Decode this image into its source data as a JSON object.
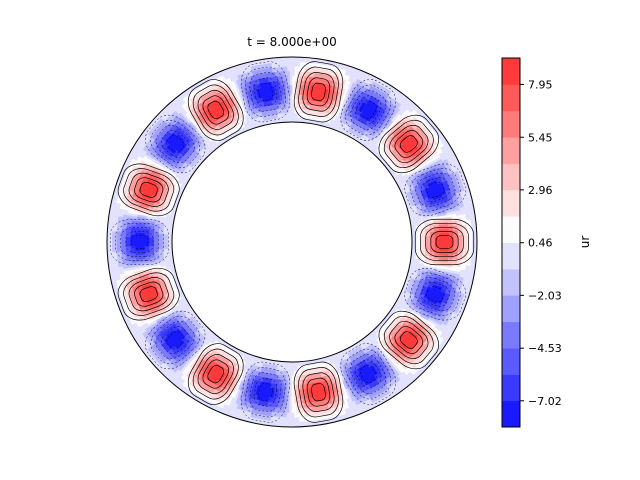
{
  "chart_data": {
    "type": "heatmap",
    "title": "t = 8.000e+00",
    "colorbar_label": "ur",
    "colorbar_ticks": [
      7.95,
      5.45,
      2.96,
      0.46,
      -2.03,
      -4.53,
      -7.02
    ],
    "colorbar_tick_labels": [
      "7.95",
      "5.45",
      "2.96",
      "0.46",
      "−2.03",
      "−4.53",
      "−7.02"
    ],
    "value_range": [
      -8.26,
      9.2
    ],
    "levels": [
      -8.26,
      -7.02,
      -5.78,
      -4.53,
      -3.28,
      -2.03,
      -0.79,
      0.46,
      1.71,
      2.96,
      4.2,
      5.45,
      6.7,
      7.95,
      9.2
    ],
    "level_colors": [
      "#1a1aff",
      "#3a3aff",
      "#5a5aff",
      "#7a7aff",
      "#a0a0ff",
      "#c2c2ff",
      "#e2e2ff",
      "#fcfcfc",
      "#ffe0e0",
      "#ffc2c2",
      "#ffa0a0",
      "#ff7a7a",
      "#ff5a5a",
      "#ff3a3a",
      "#ff1a1a"
    ],
    "domain": "annulus",
    "radius_ratio": 0.65,
    "mode_count": 9,
    "peak_positive": 9.2,
    "peak_negative": -8.26,
    "colormap": "bwr"
  }
}
